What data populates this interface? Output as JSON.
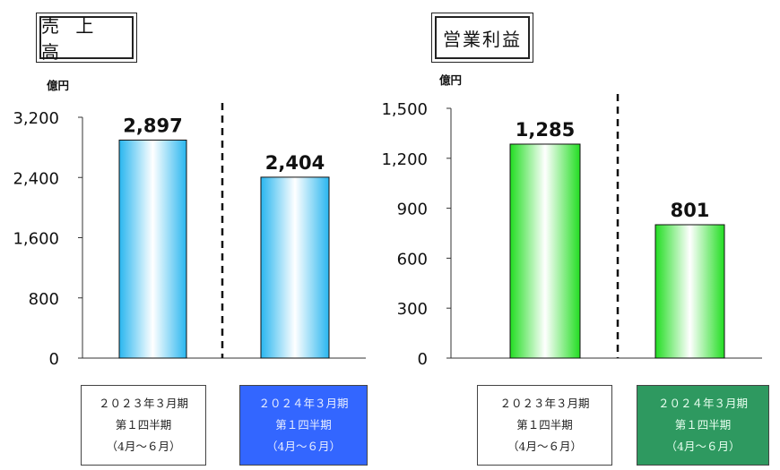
{
  "chart_data": [
    {
      "type": "bar",
      "title": "売 上 高",
      "unit": "億円",
      "categories": [
        [
          "２０２３年３月期",
          "第１四半期",
          "（4月～６月）"
        ],
        [
          "２０２４年３月期",
          "第１四半期",
          "（4月～６月）"
        ]
      ],
      "values": [
        2897,
        2404
      ],
      "value_labels": [
        "2,897",
        "2,404"
      ],
      "yticks": [
        0,
        800,
        1600,
        2400,
        3200
      ],
      "ytick_labels": [
        "0",
        "800",
        "1,600",
        "2,400",
        "3,200"
      ],
      "ylim": [
        0,
        3200
      ],
      "bar_color": "#29b6ef",
      "highlight_color": "#3366ff",
      "divider": "dashed"
    },
    {
      "type": "bar",
      "title": "営業利益",
      "unit": "億円",
      "categories": [
        [
          "２０２３年３月期",
          "第１四半期",
          "（4月～６月）"
        ],
        [
          "２０２４年３月期",
          "第１四半期",
          "（4月～６月）"
        ]
      ],
      "values": [
        1285,
        801
      ],
      "value_labels": [
        "1,285",
        "801"
      ],
      "yticks": [
        0,
        300,
        600,
        900,
        1200,
        1500
      ],
      "ytick_labels": [
        "0",
        "300",
        "600",
        "900",
        "1,200",
        "1,500"
      ],
      "ylim": [
        0,
        1500
      ],
      "bar_color": "#22dd22",
      "highlight_color": "#2e9960",
      "divider": "dashed"
    }
  ]
}
